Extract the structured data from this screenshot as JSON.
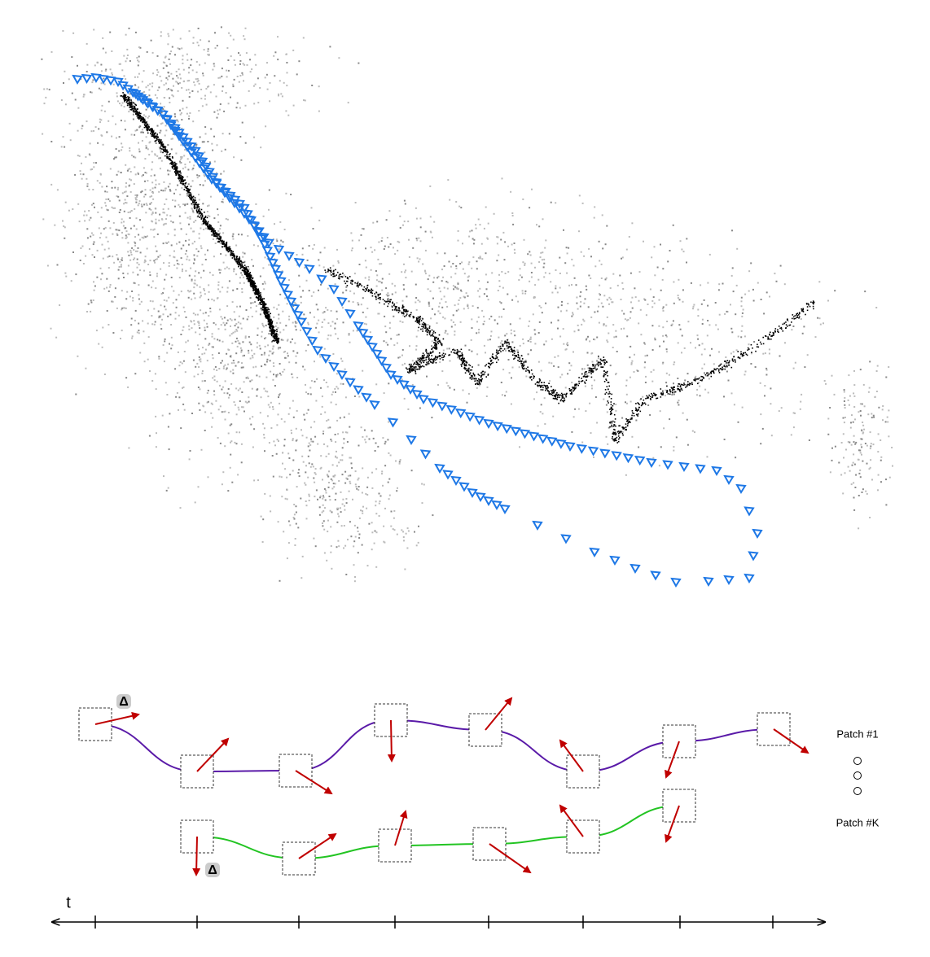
{
  "trajectories": [
    {
      "label": "Patch #1"
    },
    {
      "label": "Patch #K"
    }
  ],
  "delta_labels": [
    "Δ",
    "Δ"
  ],
  "time_axis": {
    "label": "t"
  }
}
